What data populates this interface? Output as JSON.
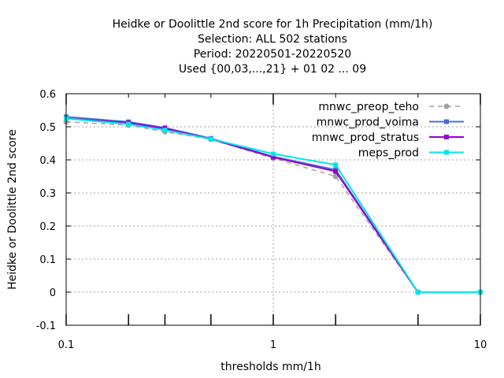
{
  "chart_data": {
    "type": "line",
    "title_lines": [
      "Heidke or Doolittle 2nd score  for 1h Precipitation (mm/1h)",
      "Selection: ALL    502 stations",
      "Period: 20220501-20220520",
      "Used {00,03,...,21} + 01 02 ... 09"
    ],
    "xlabel": "thresholds mm/1h",
    "ylabel": "Heidke or Doolittle 2nd score",
    "x_scale": "log",
    "xlim": [
      0.1,
      10
    ],
    "ylim": [
      -0.1,
      0.6
    ],
    "x_ticks": [
      {
        "value": 0.1,
        "label": "0.1"
      },
      {
        "value": 1,
        "label": "1"
      },
      {
        "value": 10,
        "label": "10"
      }
    ],
    "x_minor_ticks": [
      0.2,
      0.3,
      0.5,
      2,
      5
    ],
    "y_ticks": [
      {
        "value": -0.1,
        "label": "-0.1"
      },
      {
        "value": 0,
        "label": "0"
      },
      {
        "value": 0.1,
        "label": "0.1"
      },
      {
        "value": 0.2,
        "label": "0.2"
      },
      {
        "value": 0.3,
        "label": "0.3"
      },
      {
        "value": 0.4,
        "label": "0.4"
      },
      {
        "value": 0.5,
        "label": "0.5"
      },
      {
        "value": 0.6,
        "label": "0.6"
      }
    ],
    "grid": true,
    "legend_position": "top-right",
    "x": [
      0.1,
      0.2,
      0.3,
      0.5,
      1,
      2,
      5,
      10
    ],
    "series": [
      {
        "name": "mnwc_preop_teho",
        "color": "#a0a0a0",
        "dashed": true,
        "marker": "circle",
        "values": [
          0.515,
          0.505,
          0.485,
          0.462,
          0.405,
          0.35,
          0.0,
          0.0
        ]
      },
      {
        "name": "mnwc_prod_voima",
        "color": "#4a6fd0",
        "dashed": false,
        "marker": "square",
        "values": [
          0.53,
          0.515,
          0.497,
          0.465,
          0.41,
          0.37,
          0.0,
          0.0
        ]
      },
      {
        "name": "mnwc_prod_stratus",
        "color": "#9400d3",
        "dashed": false,
        "marker": "square",
        "values": [
          0.525,
          0.512,
          0.495,
          0.463,
          0.408,
          0.365,
          0.0,
          0.0
        ]
      },
      {
        "name": "meps_prod",
        "color": "#00e6e6",
        "dashed": false,
        "marker": "square",
        "values": [
          0.525,
          0.508,
          0.49,
          0.463,
          0.418,
          0.385,
          0.0,
          0.0
        ]
      }
    ]
  }
}
